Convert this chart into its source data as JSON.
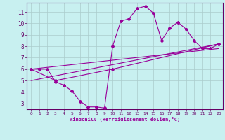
{
  "xlabel": "Windchill (Refroidissement éolien,°C)",
  "background_color": "#c8f0f0",
  "grid_color": "#aacccc",
  "line_color": "#990099",
  "xlim": [
    -0.5,
    23.5
  ],
  "ylim": [
    2.5,
    11.8
  ],
  "xticks": [
    0,
    1,
    2,
    3,
    4,
    5,
    6,
    7,
    8,
    9,
    10,
    11,
    12,
    13,
    14,
    15,
    16,
    17,
    18,
    19,
    20,
    21,
    22,
    23
  ],
  "yticks": [
    3,
    4,
    5,
    6,
    7,
    8,
    9,
    10,
    11
  ],
  "line1_x": [
    0,
    1,
    2,
    3,
    4,
    5,
    6,
    7,
    8,
    9,
    10,
    11,
    12,
    13,
    14,
    15,
    16,
    17,
    18,
    19,
    20,
    21,
    22,
    23
  ],
  "line1_y": [
    6.0,
    6.0,
    6.0,
    4.9,
    4.6,
    4.1,
    3.2,
    2.7,
    2.7,
    2.6,
    8.0,
    10.2,
    10.4,
    11.3,
    11.5,
    10.9,
    8.5,
    9.6,
    10.1,
    9.5,
    8.5,
    7.8,
    7.8,
    8.2
  ],
  "line2_x": [
    0,
    3,
    10,
    23
  ],
  "line2_y": [
    6.0,
    5.0,
    6.0,
    8.2
  ],
  "line3_x": [
    0,
    23
  ],
  "line3_y": [
    6.0,
    7.8
  ],
  "line4_x": [
    0,
    23
  ],
  "line4_y": [
    5.0,
    8.2
  ]
}
